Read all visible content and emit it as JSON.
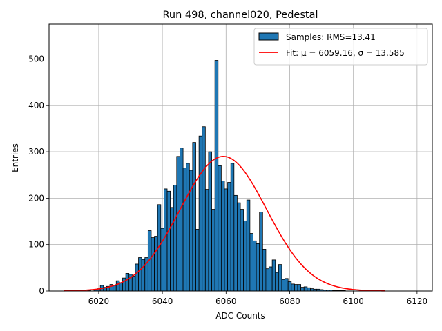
{
  "chart_data": {
    "type": "bar",
    "title": "Run 498, channel020, Pedestal",
    "xlabel": "ADC Counts",
    "ylabel": "Entries",
    "xlim": [
      6004.4,
      6124.8
    ],
    "ylim": [
      0,
      575
    ],
    "xticks": [
      6020,
      6040,
      6060,
      6080,
      6100,
      6120
    ],
    "yticks": [
      0,
      100,
      200,
      300,
      400,
      500
    ],
    "grid": true,
    "legend_position": "top-right",
    "bin_width": 1,
    "bar_color": "#1f77b4",
    "fit_color": "#ff0000",
    "legend": {
      "histogram": "Samples: RMS=13.41",
      "fit": "Fit: μ = 6059.16, σ = 13.585"
    },
    "bins": [
      6009,
      6010,
      6011,
      6012,
      6013,
      6014,
      6015,
      6016,
      6017,
      6018,
      6019,
      6020,
      6021,
      6022,
      6023,
      6024,
      6025,
      6026,
      6027,
      6028,
      6029,
      6030,
      6031,
      6032,
      6033,
      6034,
      6035,
      6036,
      6037,
      6038,
      6039,
      6040,
      6041,
      6042,
      6043,
      6044,
      6045,
      6046,
      6047,
      6048,
      6049,
      6050,
      6051,
      6052,
      6053,
      6054,
      6055,
      6056,
      6057,
      6058,
      6059,
      6060,
      6061,
      6062,
      6063,
      6064,
      6065,
      6066,
      6067,
      6068,
      6069,
      6070,
      6071,
      6072,
      6073,
      6074,
      6075,
      6076,
      6077,
      6078,
      6079,
      6080,
      6081,
      6082,
      6083,
      6084,
      6085,
      6086,
      6087,
      6088,
      6089,
      6090,
      6091,
      6092,
      6093,
      6094,
      6095,
      6096,
      6097,
      6098,
      6099,
      6100,
      6101,
      6102,
      6103,
      6104,
      6105,
      6106,
      6107,
      6108,
      6109,
      6110
    ],
    "values": [
      0,
      0,
      0,
      0,
      0,
      0,
      0,
      0,
      1,
      0,
      2,
      5,
      12,
      8,
      10,
      14,
      12,
      22,
      18,
      28,
      38,
      36,
      32,
      58,
      72,
      68,
      72,
      130,
      115,
      118,
      186,
      135,
      220,
      215,
      180,
      228,
      290,
      308,
      265,
      275,
      260,
      320,
      133,
      334,
      354,
      219,
      300,
      176,
      497,
      270,
      237,
      220,
      234,
      275,
      206,
      190,
      176,
      151,
      196,
      124,
      108,
      102,
      170,
      90,
      48,
      52,
      67,
      40,
      57,
      25,
      27,
      20,
      15,
      14,
      14,
      8,
      9,
      7,
      5,
      4,
      4,
      3,
      2,
      2,
      2,
      1,
      1,
      1,
      1,
      0,
      0,
      0,
      0,
      0,
      0,
      0,
      0,
      0,
      0,
      0,
      0,
      0
    ],
    "fit": {
      "mu": 6059.16,
      "sigma": 13.585,
      "amplitude": 290,
      "x_range": [
        6009,
        6110
      ]
    }
  }
}
